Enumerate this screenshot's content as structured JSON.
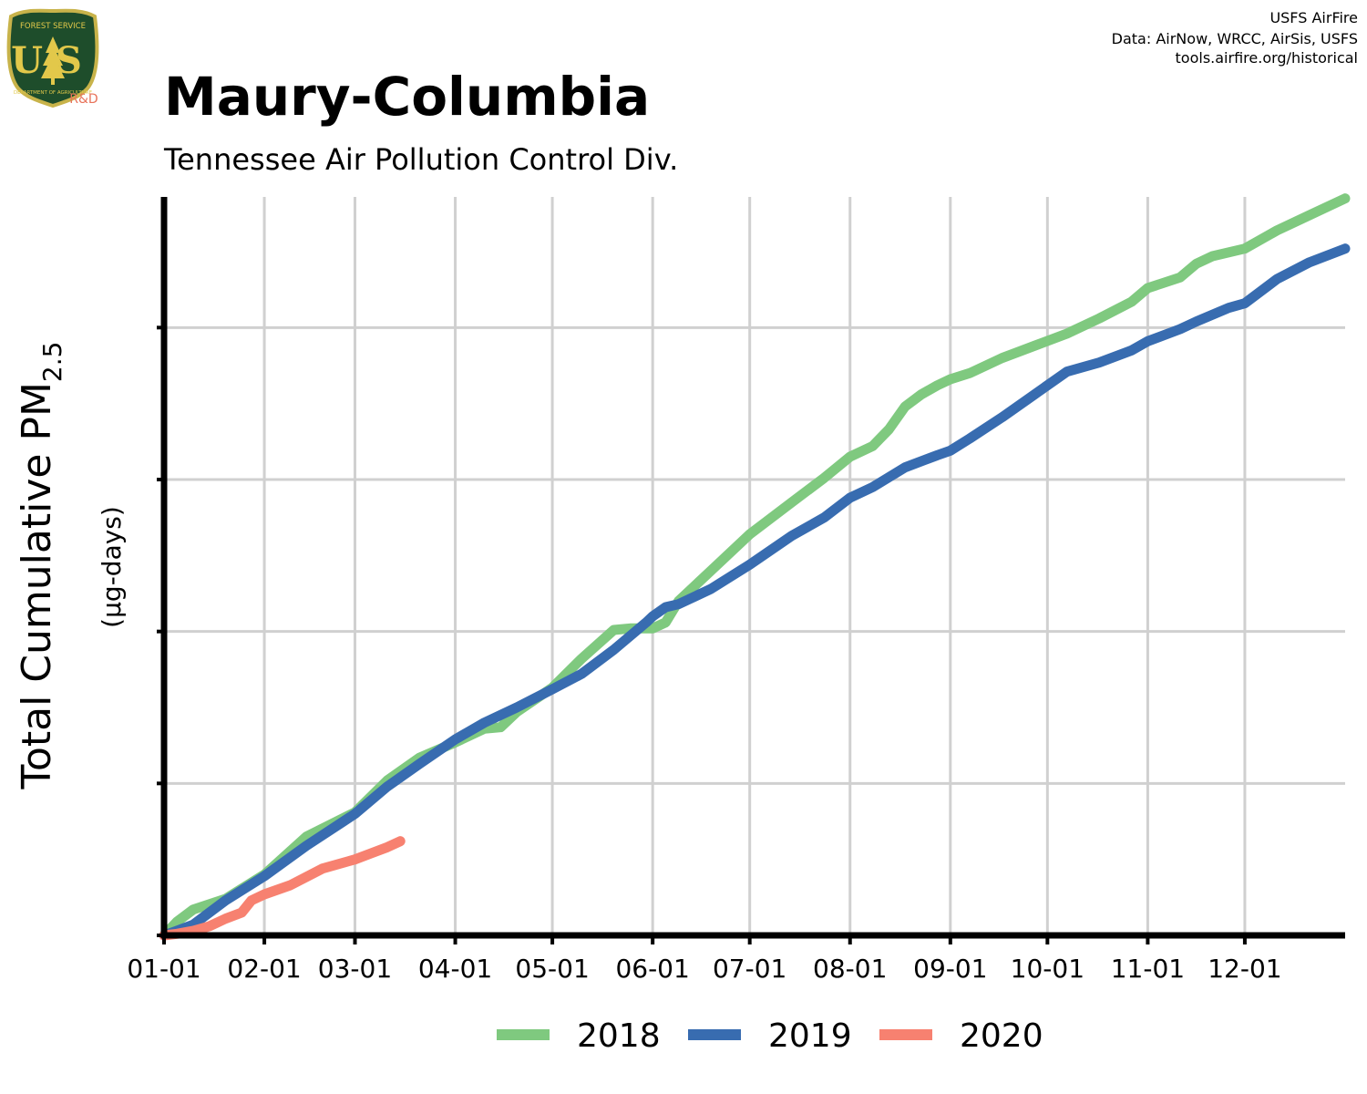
{
  "logo": {
    "top_text": "FOREST SERVICE",
    "main_text": "US",
    "bottom_text": "DEPARTMENT OF AGRICULTURE",
    "badge": "R&D",
    "colors": {
      "shield": "#1e4d2b",
      "rim": "#c8b34a",
      "letters": "#e2c84a",
      "badge": "#e8735a"
    }
  },
  "credits": {
    "line1": "USFS AirFire",
    "line2": "Data: AirNow, WRCC, AirSis, USFS",
    "line3": "tools.airfire.org/historical"
  },
  "chart_data": {
    "type": "line",
    "title": "Maury-Columbia",
    "subtitle": "Tennessee Air Pollution Control Div.",
    "ylabel": "Total Cumulative PM",
    "ylabel_subscript": "2.5",
    "yunit": "(µg-days)",
    "xlabel": "",
    "x_ticks": [
      "01-01",
      "02-01",
      "03-01",
      "04-01",
      "05-01",
      "06-01",
      "07-01",
      "08-01",
      "09-01",
      "10-01",
      "11-01",
      "12-01"
    ],
    "x_tick_days": [
      1,
      32,
      60,
      91,
      121,
      152,
      182,
      213,
      244,
      274,
      305,
      335
    ],
    "xlim": [
      1,
      366
    ],
    "ylim": [
      0,
      4860
    ],
    "y_gridlines": [
      0,
      1000,
      2000,
      3000,
      4000
    ],
    "y_tick_labels_shown": false,
    "grid": true,
    "legend_position": "bottom",
    "series": [
      {
        "name": "2018",
        "color": "#7fc97f",
        "x": [
          1,
          5,
          10,
          20,
          32,
          45,
          60,
          70,
          80,
          91,
          100,
          105,
          110,
          121,
          130,
          140,
          145,
          152,
          156,
          160,
          170,
          182,
          195,
          205,
          213,
          220,
          225,
          230,
          235,
          240,
          244,
          250,
          260,
          270,
          280,
          290,
          300,
          305,
          315,
          320,
          325,
          335,
          345,
          355,
          366
        ],
        "values": [
          0,
          90,
          170,
          240,
          400,
          650,
          810,
          1020,
          1170,
          1270,
          1360,
          1370,
          1470,
          1630,
          1820,
          2010,
          2020,
          2020,
          2060,
          2200,
          2400,
          2640,
          2850,
          3010,
          3150,
          3220,
          3330,
          3480,
          3560,
          3620,
          3660,
          3700,
          3800,
          3880,
          3960,
          4060,
          4170,
          4260,
          4330,
          4420,
          4470,
          4520,
          4640,
          4740,
          4850
        ]
      },
      {
        "name": "2019",
        "color": "#386cb0",
        "x": [
          1,
          5,
          10,
          20,
          32,
          45,
          60,
          70,
          80,
          91,
          100,
          110,
          121,
          130,
          140,
          150,
          152,
          156,
          160,
          170,
          182,
          195,
          205,
          213,
          220,
          230,
          240,
          244,
          250,
          260,
          270,
          280,
          290,
          300,
          305,
          315,
          320,
          330,
          335,
          345,
          355,
          366
        ],
        "values": [
          0,
          30,
          70,
          230,
          390,
          590,
          800,
          980,
          1130,
          1290,
          1400,
          1500,
          1620,
          1720,
          1880,
          2060,
          2100,
          2160,
          2180,
          2280,
          2440,
          2630,
          2750,
          2880,
          2950,
          3080,
          3160,
          3190,
          3270,
          3410,
          3560,
          3710,
          3770,
          3850,
          3910,
          3990,
          4040,
          4130,
          4160,
          4320,
          4430,
          4520
        ]
      },
      {
        "name": "2020",
        "color": "#f78170",
        "x": [
          1,
          5,
          10,
          15,
          20,
          25,
          28,
          32,
          40,
          50,
          60,
          65,
          70,
          74
        ],
        "values": [
          0,
          10,
          30,
          60,
          110,
          150,
          230,
          270,
          330,
          440,
          500,
          540,
          580,
          620
        ]
      }
    ]
  }
}
